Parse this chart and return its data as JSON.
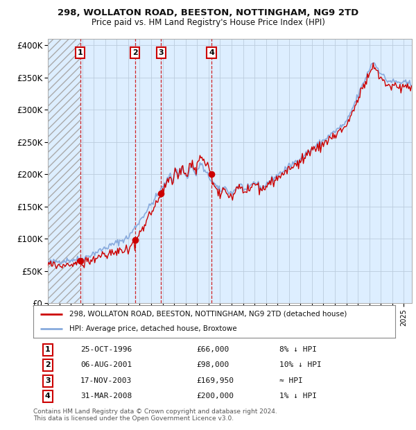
{
  "title1": "298, WOLLATON ROAD, BEESTON, NOTTINGHAM, NG9 2TD",
  "title2": "Price paid vs. HM Land Registry's House Price Index (HPI)",
  "ylim": [
    0,
    410000
  ],
  "yticks": [
    0,
    50000,
    100000,
    150000,
    200000,
    250000,
    300000,
    350000,
    400000
  ],
  "ytick_labels": [
    "£0",
    "£50K",
    "£100K",
    "£150K",
    "£200K",
    "£250K",
    "£300K",
    "£350K",
    "£400K"
  ],
  "xlim_start": 1994.0,
  "xlim_end": 2025.7,
  "background_plot": "#ddeeff",
  "background_fig": "#ffffff",
  "grid_color": "#bbccdd",
  "line_color_hpi": "#88aadd",
  "line_color_price": "#cc0000",
  "dot_color": "#cc0000",
  "dashed_line_color": "#cc0000",
  "transactions": [
    {
      "num": 1,
      "date": "25-OCT-1996",
      "price": 66000,
      "year": 1996.81,
      "hpi_pct": "8% ↓ HPI"
    },
    {
      "num": 2,
      "date": "06-AUG-2001",
      "price": 98000,
      "year": 2001.59,
      "hpi_pct": "10% ↓ HPI"
    },
    {
      "num": 3,
      "date": "17-NOV-2003",
      "price": 169950,
      "year": 2003.87,
      "hpi_pct": "≈ HPI"
    },
    {
      "num": 4,
      "date": "31-MAR-2008",
      "price": 200000,
      "year": 2008.25,
      "hpi_pct": "1% ↓ HPI"
    }
  ],
  "legend_price_label": "298, WOLLATON ROAD, BEESTON, NOTTINGHAM, NG9 2TD (detached house)",
  "legend_hpi_label": "HPI: Average price, detached house, Broxtowe",
  "footnote": "Contains HM Land Registry data © Crown copyright and database right 2024.\nThis data is licensed under the Open Government Licence v3.0."
}
